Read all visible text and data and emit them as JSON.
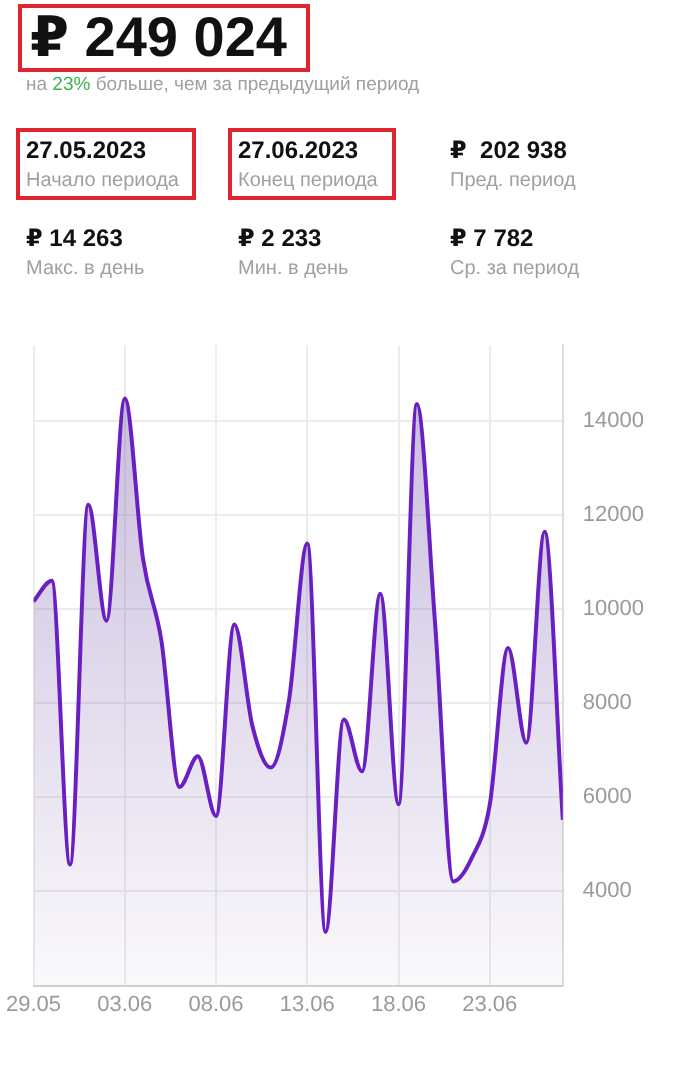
{
  "chart_data": {
    "type": "area",
    "title": "₽ 249 024",
    "subtitle": "на 23% больше, чем за предыдущий период",
    "annotations": [
      "27.05.2023",
      "Начало периода",
      "27.06.2023",
      "Конец периода",
      "₽  202 938",
      "Пред. период",
      "₽ 14 263",
      "Макс. в день",
      "₽ 2 233",
      "Мин. в день",
      "₽ 7 782",
      "Ср. за период"
    ],
    "x": [
      "--05-29",
      "--05-30",
      "--05-31",
      "--06-01",
      "--06-02",
      "--06-03",
      "--06-04",
      "--06-05",
      "--06-06",
      "--06-07",
      "--06-08",
      "--06-09",
      "--06-10",
      "--06-11",
      "--06-12",
      "--06-13",
      "--06-14",
      "--06-15",
      "--06-16",
      "--06-17",
      "--06-18",
      "--06-19",
      "--06-20",
      "--06-21",
      "--06-22",
      "--06-23",
      "--06-24",
      "--06-25",
      "--06-26",
      "--06-27"
    ],
    "values": [
      10160,
      10600,
      4570,
      12210,
      9750,
      14470,
      11060,
      9340,
      6220,
      6870,
      5600,
      9670,
      7500,
      6630,
      8070,
      11390,
      3140,
      7650,
      6550,
      10320,
      5850,
      14350,
      9700,
      4210,
      4700,
      5850,
      9170,
      7160,
      11640,
      5520
    ],
    "color": "#6a1fc2",
    "xlim": [
      "--05-29",
      "--06-27"
    ],
    "xticks": [
      {
        "value": "--05-29",
        "label": "29.05"
      },
      {
        "value": "--06-03",
        "label": "03.06"
      },
      {
        "value": "--06-08",
        "label": "08.06"
      },
      {
        "value": "--06-13",
        "label": "13.06"
      },
      {
        "value": "--06-18",
        "label": "18.06"
      },
      {
        "value": "--06-23",
        "label": "23.06"
      }
    ],
    "ylim": [
      2000,
      15600
    ],
    "yticks": [
      4000,
      6000,
      8000,
      10000,
      12000,
      14000
    ],
    "grid": true,
    "legend": false,
    "marker": "none"
  }
}
